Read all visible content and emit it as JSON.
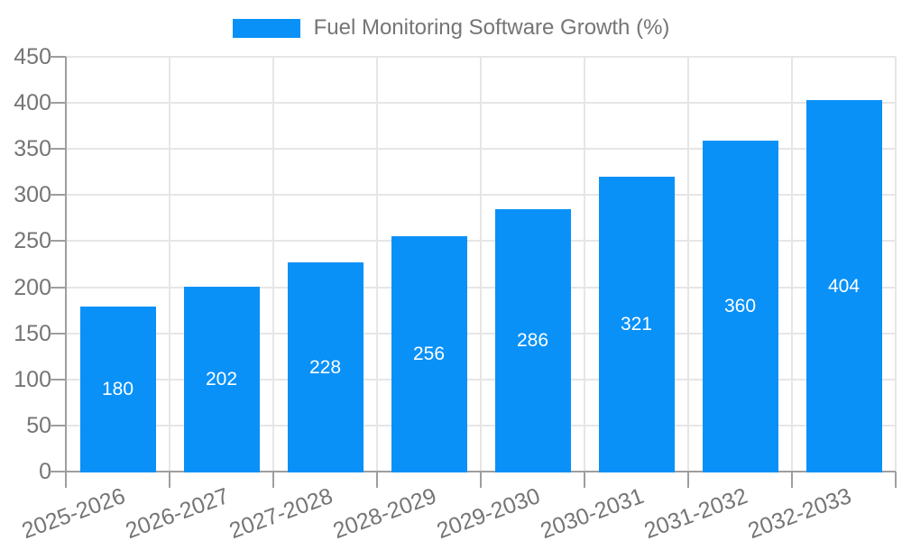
{
  "chart_data": {
    "type": "bar",
    "title": "",
    "legend": "Fuel Monitoring Software Growth (%)",
    "legend_position": "top",
    "categories": [
      "2025-2026",
      "2026-2027",
      "2027-2028",
      "2028-2029",
      "2029-2030",
      "2030-2031",
      "2031-2032",
      "2032-2033"
    ],
    "values": [
      180,
      202,
      228,
      256,
      286,
      321,
      360,
      404
    ],
    "xlabel": "",
    "ylabel": "",
    "ylim": [
      0,
      450
    ],
    "yticks": [
      0,
      50,
      100,
      150,
      200,
      250,
      300,
      350,
      400,
      450
    ],
    "grid": true,
    "bar_value_labels_visible": true,
    "colors": {
      "bar": "#0991f8",
      "bar_label": "#ffffff",
      "axis_line": "#9e9e9e",
      "gridline": "#e6e6e6",
      "tick_label": "#757575",
      "legend_text": "#757575",
      "background": "#ffffff"
    }
  }
}
